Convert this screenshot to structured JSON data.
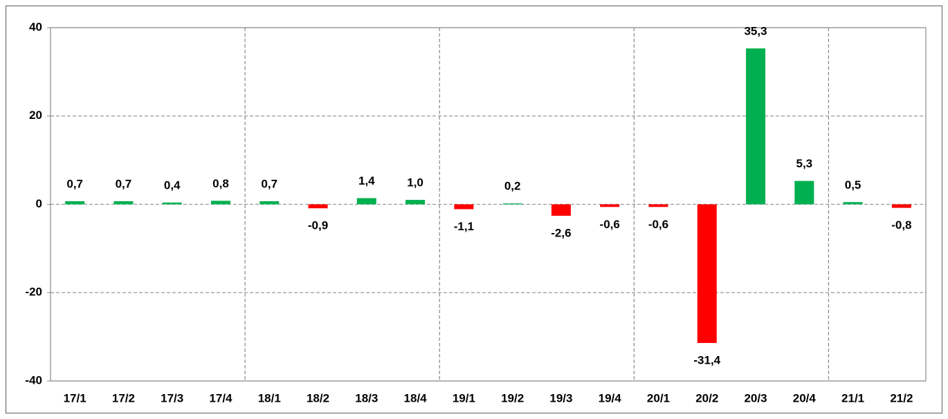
{
  "chart_data": {
    "type": "bar",
    "categories": [
      "17/1",
      "17/2",
      "17/3",
      "17/4",
      "18/1",
      "18/2",
      "18/3",
      "18/4",
      "19/1",
      "19/2",
      "19/3",
      "19/4",
      "20/1",
      "20/2",
      "20/3",
      "20/4",
      "21/1",
      "21/2"
    ],
    "values": [
      0.7,
      0.7,
      0.4,
      0.8,
      0.7,
      -0.9,
      1.4,
      1.0,
      -1.1,
      0.2,
      -2.6,
      -0.6,
      -0.6,
      -31.4,
      35.3,
      5.3,
      0.5,
      -0.8
    ],
    "value_labels": [
      "0,7",
      "0,7",
      "0,4",
      "0,8",
      "0,7",
      "-0,9",
      "1,4",
      "1,0",
      "-1,1",
      "0,2",
      "-2,6",
      "-0,6",
      "-0,6",
      "-31,4",
      "35,3",
      "5,3",
      "0,5",
      "-0,8"
    ],
    "colors": [
      "#00b050",
      "#00b050",
      "#00b050",
      "#00b050",
      "#00b050",
      "#ff0000",
      "#00b050",
      "#00b050",
      "#ff0000",
      "#00b050",
      "#ff0000",
      "#ff0000",
      "#ff0000",
      "#ff0000",
      "#00b050",
      "#00b050",
      "#00b050",
      "#ff0000"
    ],
    "ylim": [
      -40,
      40
    ],
    "yticks": [
      -40,
      -20,
      0,
      20,
      40
    ],
    "grid": true
  }
}
